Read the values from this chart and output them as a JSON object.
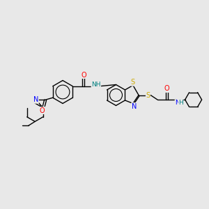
{
  "background_color": "#e8e8e8",
  "figsize": [
    3.0,
    3.0
  ],
  "dpi": 100,
  "atom_colors": {
    "C": "#000000",
    "N": "#0000ff",
    "O": "#ff0000",
    "S": "#ccaa00",
    "H": "#008080"
  },
  "bond_color": "#000000",
  "bond_width": 1.0,
  "font_size": 6.5,
  "font_size_atom": 7.0
}
